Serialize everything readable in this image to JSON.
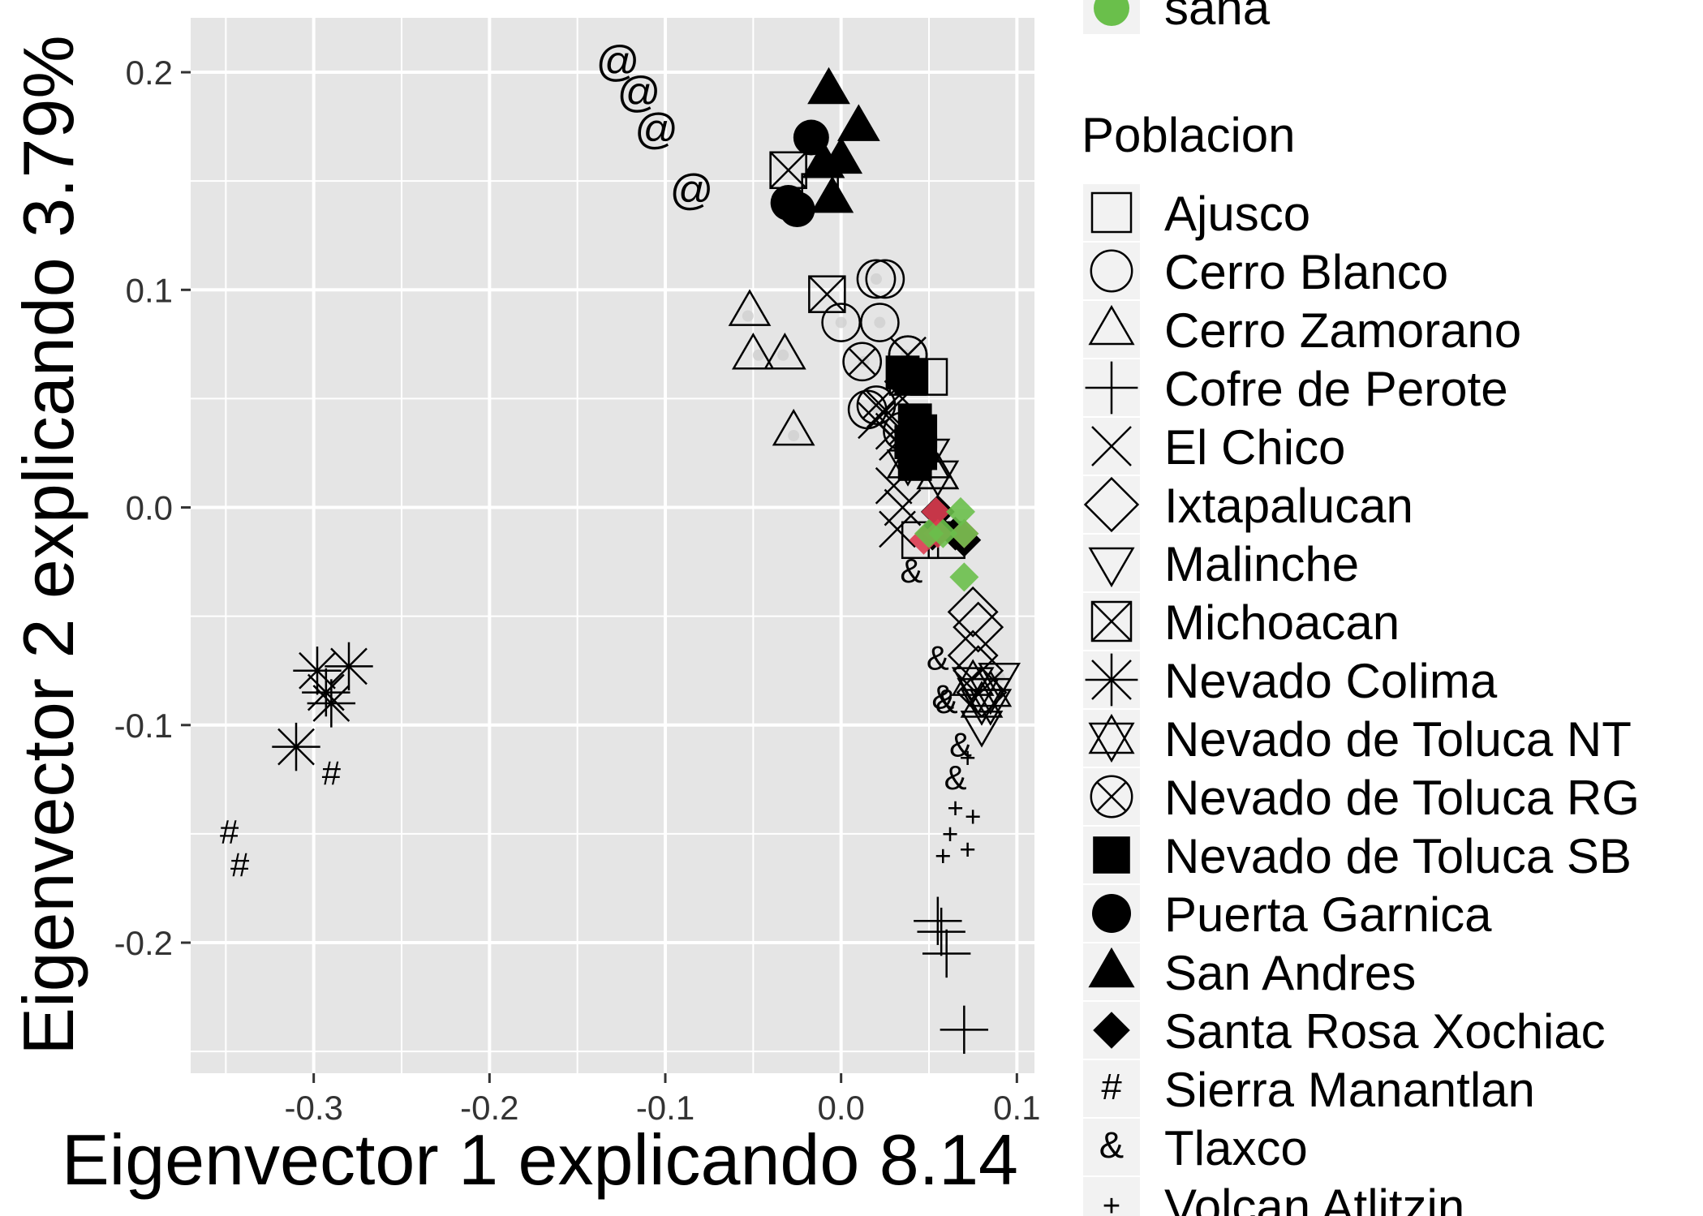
{
  "chart_data": {
    "type": "scatter",
    "xlabel": "Eigenvector 1 explicando 8.14",
    "ylabel": "Eigenvector 2 explicando 3.79%",
    "xlim": [
      -0.37,
      0.11
    ],
    "ylim": [
      -0.26,
      0.225
    ],
    "x_ticks": [
      "-0.3",
      "-0.2",
      "-0.1",
      "0.0",
      "0.1"
    ],
    "y_ticks": [
      "-0.2",
      "-0.1",
      "0.0",
      "0.1",
      "0.2"
    ],
    "grid": true,
    "legend_position": "right",
    "colors": {
      "panel": "#e5e5e5",
      "grid": "#ffffff",
      "enferma": "#dc3c50",
      "sana": "#6abf4b",
      "gray_point": "#cfcfcf"
    },
    "color_legend": {
      "visible_entries": [
        {
          "label": "sana",
          "color": "#6abf4b"
        }
      ]
    },
    "shape_legend": {
      "title": "Poblacion",
      "entries": [
        {
          "label": "Ajusco",
          "shape": "square-open-icon"
        },
        {
          "label": "Cerro Blanco",
          "shape": "circle-open-icon"
        },
        {
          "label": "Cerro Zamorano",
          "shape": "triangle-open-icon"
        },
        {
          "label": "Cofre de Perote",
          "shape": "plus-icon"
        },
        {
          "label": "El Chico",
          "shape": "cross-icon"
        },
        {
          "label": "Ixtapalucan",
          "shape": "diamond-open-icon"
        },
        {
          "label": "Malinche",
          "shape": "triangle-down-open-icon"
        },
        {
          "label": "Michoacan",
          "shape": "square-cross-icon"
        },
        {
          "label": "Nevado Colima",
          "shape": "asterisk-icon"
        },
        {
          "label": "Nevado de Toluca NT",
          "shape": "star-of-david-icon"
        },
        {
          "label": "Nevado de Toluca RG",
          "shape": "circle-cross-icon"
        },
        {
          "label": "Nevado de Toluca SB",
          "shape": "square-filled-icon"
        },
        {
          "label": "Puerta Garnica",
          "shape": "circle-filled-icon"
        },
        {
          "label": "San Andres",
          "shape": "triangle-filled-icon"
        },
        {
          "label": "Santa Rosa Xochiac",
          "shape": "diamond-filled-icon"
        },
        {
          "label": "Sierra Manantlan",
          "shape": "hash-glyph",
          "glyph": "#"
        },
        {
          "label": "Tlaxco",
          "shape": "ampersand-glyph",
          "glyph": "&"
        },
        {
          "label": "Volcan Atlitzin",
          "shape": "small-plus-glyph",
          "glyph": "+"
        }
      ]
    },
    "series": [
      {
        "name": "Ajusco",
        "points": [
          [
            -0.03,
            0.155
          ],
          [
            -0.012,
            0.145
          ],
          [
            0.045,
            -0.015
          ],
          [
            0.06,
            -0.015
          ],
          [
            0.05,
            0.06
          ]
        ]
      },
      {
        "name": "Cerro Blanco",
        "points": [
          [
            0.02,
            0.105
          ],
          [
            0.025,
            0.105
          ],
          [
            0.0,
            0.085
          ],
          [
            0.022,
            0.085
          ],
          [
            0.038,
            0.07
          ],
          [
            0.015,
            0.045
          ]
        ]
      },
      {
        "name": "Cerro Zamorano",
        "points": [
          [
            -0.052,
            0.09
          ],
          [
            -0.05,
            0.07
          ],
          [
            -0.032,
            0.07
          ],
          [
            -0.027,
            0.035
          ],
          [
            0.05,
            0.02
          ],
          [
            0.055,
            0.015
          ]
        ]
      },
      {
        "name": "Cofre de Perote",
        "points": [
          [
            0.055,
            -0.19
          ],
          [
            0.057,
            -0.195
          ],
          [
            0.06,
            -0.205
          ],
          [
            0.07,
            -0.24
          ]
        ]
      },
      {
        "name": "El Chico",
        "points": [
          [
            0.038,
            0.07
          ],
          [
            0.025,
            0.045
          ],
          [
            0.02,
            0.04
          ],
          [
            0.03,
            0.035
          ],
          [
            0.032,
            0.03
          ],
          [
            0.035,
            0.05
          ],
          [
            0.03,
            0.01
          ],
          [
            0.035,
            0.0
          ],
          [
            0.032,
            -0.01
          ]
        ]
      },
      {
        "name": "Ixtapalucan",
        "points": [
          [
            0.075,
            -0.048
          ],
          [
            0.078,
            -0.055
          ],
          [
            0.075,
            -0.068
          ],
          [
            0.078,
            -0.075
          ],
          [
            0.08,
            -0.085
          ]
        ]
      },
      {
        "name": "Malinche",
        "points": [
          [
            0.09,
            -0.078
          ],
          [
            0.085,
            -0.09
          ],
          [
            0.08,
            -0.1
          ],
          [
            0.078,
            -0.085
          ],
          [
            0.05,
            0.025
          ]
        ]
      },
      {
        "name": "Michoacan",
        "points": [
          [
            -0.03,
            0.155
          ],
          [
            -0.008,
            0.098
          ],
          [
            0.038,
            0.06
          ]
        ]
      },
      {
        "name": "Nevado Colima",
        "points": [
          [
            -0.298,
            -0.075
          ],
          [
            -0.28,
            -0.073
          ],
          [
            -0.293,
            -0.085
          ],
          [
            -0.29,
            -0.09
          ],
          [
            -0.31,
            -0.11
          ]
        ]
      },
      {
        "name": "Nevado de Toluca NT",
        "points": [
          [
            0.038,
            0.02
          ],
          [
            0.055,
            0.015
          ],
          [
            0.075,
            -0.08
          ],
          [
            0.085,
            -0.085
          ],
          [
            0.08,
            -0.09
          ]
        ]
      },
      {
        "name": "Nevado de Toluca RG",
        "points": [
          [
            0.012,
            0.067
          ],
          [
            0.038,
            0.07
          ],
          [
            0.02,
            0.047
          ],
          [
            0.035,
            0.035
          ]
        ]
      },
      {
        "name": "Nevado de Toluca SB",
        "points": [
          [
            0.035,
            0.062
          ],
          [
            0.04,
            0.06
          ],
          [
            0.042,
            0.04
          ],
          [
            0.045,
            0.035
          ],
          [
            0.04,
            0.03
          ],
          [
            0.045,
            0.025
          ],
          [
            0.042,
            0.02
          ]
        ]
      },
      {
        "name": "Puerta Garnica",
        "points": [
          [
            -0.017,
            0.17
          ],
          [
            -0.03,
            0.14
          ],
          [
            -0.025,
            0.137
          ]
        ]
      },
      {
        "name": "San Andres",
        "points": [
          [
            -0.007,
            0.192
          ],
          [
            0.01,
            0.175
          ],
          [
            0.0,
            0.16
          ],
          [
            -0.01,
            0.158
          ],
          [
            -0.005,
            0.142
          ]
        ]
      },
      {
        "name": "Santa Rosa Xochiac",
        "points": [
          [
            0.055,
            -0.002
          ],
          [
            0.065,
            -0.012
          ],
          [
            0.07,
            -0.015
          ],
          [
            0.052,
            -0.012
          ],
          [
            0.055,
            -0.01
          ]
        ]
      },
      {
        "name": "Sierra Manantlan",
        "points": [
          [
            -0.348,
            -0.15
          ],
          [
            -0.342,
            -0.165
          ],
          [
            -0.29,
            -0.123
          ]
        ]
      },
      {
        "name": "Tlaxco",
        "points": [
          [
            0.04,
            -0.03
          ],
          [
            0.055,
            -0.07
          ],
          [
            0.058,
            -0.088
          ],
          [
            0.06,
            -0.09
          ],
          [
            0.068,
            -0.11
          ],
          [
            0.065,
            -0.125
          ]
        ]
      },
      {
        "name": "Volcan Atlitzin",
        "points": [
          [
            0.072,
            -0.115
          ],
          [
            0.065,
            -0.138
          ],
          [
            0.075,
            -0.142
          ],
          [
            0.058,
            -0.16
          ],
          [
            0.072,
            -0.157
          ],
          [
            0.062,
            -0.15
          ]
        ]
      },
      {
        "name": "@",
        "points": [
          [
            -0.127,
            0.204
          ],
          [
            -0.115,
            0.19
          ],
          [
            -0.105,
            0.173
          ],
          [
            -0.085,
            0.145
          ]
        ]
      }
    ],
    "colored_points": {
      "enferma": [
        [
          0.054,
          -0.002
        ],
        [
          0.047,
          -0.015
        ],
        [
          0.07,
          -0.012
        ],
        [
          0.055,
          -0.012
        ]
      ],
      "sana": [
        [
          0.068,
          -0.002
        ],
        [
          0.05,
          -0.012
        ],
        [
          0.07,
          -0.012
        ],
        [
          0.058,
          -0.012
        ],
        [
          0.07,
          -0.032
        ]
      ]
    },
    "gray_points": [
      [
        -0.053,
        0.088
      ],
      [
        -0.047,
        0.07
      ],
      [
        -0.033,
        0.07
      ],
      [
        -0.027,
        0.033
      ],
      [
        0.02,
        0.105
      ],
      [
        0.0,
        0.085
      ],
      [
        0.022,
        0.085
      ],
      [
        0.013,
        0.067
      ],
      [
        0.037,
        0.07
      ],
      [
        0.02,
        0.046
      ],
      [
        0.09,
        -0.078
      ]
    ],
    "at_glyph": "@"
  }
}
